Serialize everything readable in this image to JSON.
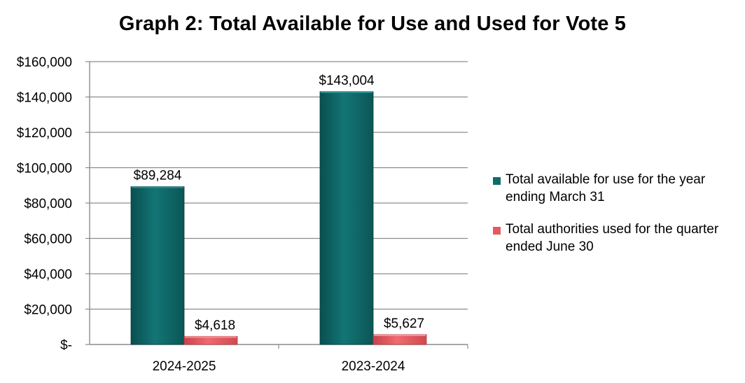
{
  "chart_data": {
    "type": "bar",
    "title": "Graph 2: Total Available for Use and Used for Vote 5",
    "categories": [
      "2024-2025",
      "2023-2024"
    ],
    "series": [
      {
        "name": "Total available for use for the year ending March 31",
        "values": [
          89284,
          143004
        ],
        "labels": [
          "$89,284",
          "$143,004"
        ],
        "color": "#0f6b6b"
      },
      {
        "name": "Total authorities used for the quarter ended June 30",
        "values": [
          4618,
          5627
        ],
        "labels": [
          "$4,618",
          "$5,627"
        ],
        "color": "#e35a60"
      }
    ],
    "ylim": [
      0,
      160000
    ],
    "yticks": [
      0,
      20000,
      40000,
      60000,
      80000,
      100000,
      120000,
      140000,
      160000
    ],
    "ytick_labels": [
      "$-",
      "$20,000",
      "$40,000",
      "$60,000",
      "$80,000",
      "$100,000",
      "$120,000",
      "$140,000",
      "$160,000"
    ],
    "xlabel": "",
    "ylabel": "",
    "grid": true,
    "legend_position": "right"
  }
}
